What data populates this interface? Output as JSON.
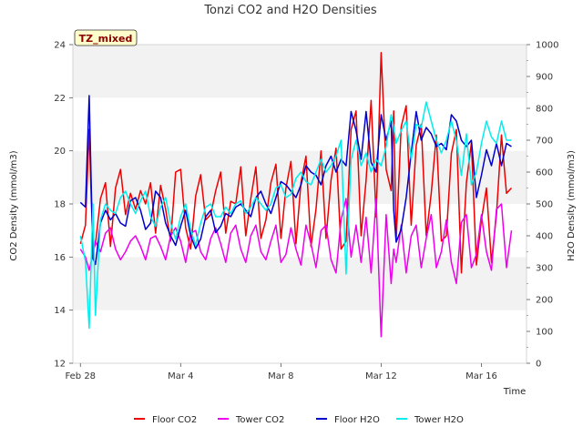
{
  "chart_data": {
    "type": "line",
    "title": "Tonzi CO2 and H2O Densities",
    "badge": "TZ_mixed",
    "xlabel": "Time",
    "ylabel_left": "CO2 Density (mmol/m3)",
    "ylabel_right": "H2O Density (mmol/m3)",
    "ylim_left": [
      12,
      24
    ],
    "ylim_right": [
      0,
      1000
    ],
    "xlim_days": [
      -0.3,
      17.8
    ],
    "x_ticks": [
      {
        "day": 0,
        "label": "Feb 28"
      },
      {
        "day": 4,
        "label": "Mar 4"
      },
      {
        "day": 8,
        "label": "Mar 8"
      },
      {
        "day": 12,
        "label": "Mar 12"
      },
      {
        "day": 16,
        "label": "Mar 16"
      }
    ],
    "y_ticks_left": [
      "12",
      "14",
      "16",
      "18",
      "20",
      "22",
      "24"
    ],
    "y_ticks_right": [
      "0",
      "100",
      "200",
      "300",
      "400",
      "500",
      "600",
      "700",
      "800",
      "900",
      "1000"
    ],
    "grid": "horizontal bands",
    "legend_position": "bottom",
    "series": [
      {
        "name": "Floor CO2",
        "axis": "left",
        "color": "#ee0000",
        "x": [
          0.0,
          0.2,
          0.35,
          0.5,
          0.6,
          0.8,
          1.0,
          1.2,
          1.4,
          1.6,
          1.8,
          2.0,
          2.2,
          2.4,
          2.6,
          2.8,
          3.0,
          3.2,
          3.4,
          3.6,
          3.8,
          4.0,
          4.2,
          4.4,
          4.6,
          4.8,
          5.0,
          5.2,
          5.4,
          5.6,
          5.8,
          6.0,
          6.2,
          6.4,
          6.6,
          6.8,
          7.0,
          7.2,
          7.4,
          7.6,
          7.8,
          8.0,
          8.2,
          8.4,
          8.6,
          8.8,
          9.0,
          9.2,
          9.4,
          9.6,
          9.8,
          10.0,
          10.2,
          10.4,
          10.6,
          10.8,
          11.0,
          11.2,
          11.4,
          11.6,
          11.8,
          12.0,
          12.2,
          12.4,
          12.5,
          12.6,
          12.8,
          13.0,
          13.2,
          13.4,
          13.6,
          13.8,
          14.0,
          14.2,
          14.4,
          14.6,
          14.8,
          15.0,
          15.2,
          15.4,
          15.6,
          15.8,
          16.0,
          16.2,
          16.4,
          16.6,
          16.8,
          17.0,
          17.2
        ],
        "y": [
          16.5,
          17.2,
          20.8,
          16.2,
          16.5,
          18.2,
          18.8,
          16.4,
          18.6,
          19.3,
          17.6,
          18.4,
          17.8,
          18.5,
          18.0,
          18.8,
          16.9,
          18.7,
          17.8,
          16.6,
          19.2,
          19.3,
          17.1,
          16.3,
          18.3,
          19.1,
          17.4,
          17.6,
          18.5,
          19.2,
          16.9,
          18.1,
          18.0,
          19.4,
          16.8,
          18.2,
          19.4,
          16.7,
          17.4,
          18.8,
          19.5,
          16.7,
          18.6,
          19.6,
          16.5,
          18.8,
          19.8,
          16.4,
          17.8,
          20.0,
          16.7,
          18.9,
          20.1,
          16.3,
          16.6,
          20.8,
          21.5,
          16.8,
          18.9,
          21.9,
          17.5,
          23.7,
          19.3,
          18.5,
          21.5,
          16.6,
          20.9,
          21.7,
          17.2,
          20.2,
          21.0,
          16.8,
          18.4,
          20.6,
          16.6,
          16.8,
          19.9,
          20.8,
          15.4,
          18.8,
          20.3,
          15.7,
          17.4,
          18.6,
          15.8,
          17.6,
          20.6,
          18.4,
          18.6
        ]
      },
      {
        "name": "Tower CO2",
        "axis": "left",
        "color": "#ee00ee",
        "x": [
          0.0,
          0.2,
          0.35,
          0.5,
          0.6,
          0.8,
          1.0,
          1.2,
          1.4,
          1.6,
          1.8,
          2.0,
          2.2,
          2.4,
          2.6,
          2.8,
          3.0,
          3.2,
          3.4,
          3.6,
          3.8,
          4.0,
          4.2,
          4.4,
          4.6,
          4.8,
          5.0,
          5.2,
          5.4,
          5.6,
          5.8,
          6.0,
          6.2,
          6.4,
          6.6,
          6.8,
          7.0,
          7.2,
          7.4,
          7.6,
          7.8,
          8.0,
          8.2,
          8.4,
          8.6,
          8.8,
          9.0,
          9.2,
          9.4,
          9.6,
          9.8,
          10.0,
          10.2,
          10.4,
          10.6,
          10.8,
          11.0,
          11.2,
          11.4,
          11.6,
          11.8,
          12.0,
          12.2,
          12.4,
          12.5,
          12.6,
          12.8,
          13.0,
          13.2,
          13.4,
          13.6,
          13.8,
          14.0,
          14.2,
          14.4,
          14.6,
          14.8,
          15.0,
          15.2,
          15.4,
          15.6,
          15.8,
          16.0,
          16.2,
          16.4,
          16.6,
          16.8,
          17.0,
          17.2
        ],
        "y": [
          16.3,
          16.0,
          15.5,
          16.1,
          16.6,
          16.2,
          16.9,
          17.1,
          16.3,
          15.9,
          16.2,
          16.6,
          16.8,
          16.4,
          15.9,
          16.7,
          16.8,
          16.4,
          15.9,
          16.8,
          17.1,
          16.6,
          15.8,
          16.9,
          17.0,
          16.2,
          15.9,
          16.7,
          17.1,
          16.5,
          15.8,
          16.9,
          17.2,
          16.3,
          15.8,
          16.8,
          17.2,
          16.2,
          15.9,
          16.6,
          17.2,
          15.8,
          16.1,
          17.1,
          16.3,
          15.7,
          17.2,
          16.5,
          15.6,
          17.0,
          17.2,
          15.9,
          15.4,
          17.4,
          18.2,
          16.0,
          17.2,
          15.8,
          17.5,
          15.4,
          18.2,
          13.0,
          17.6,
          15.0,
          16.3,
          15.8,
          17.2,
          15.4,
          16.8,
          17.2,
          15.6,
          16.7,
          17.6,
          15.6,
          16.2,
          17.4,
          15.8,
          15.0,
          17.3,
          17.6,
          15.6,
          16.1,
          17.6,
          16.2,
          15.5,
          17.8,
          18.0,
          15.6,
          17.0
        ]
      },
      {
        "name": "Floor H2O",
        "axis": "right",
        "color": "#0000cc",
        "x": [
          0.0,
          0.2,
          0.35,
          0.5,
          0.6,
          0.8,
          1.0,
          1.2,
          1.4,
          1.6,
          1.8,
          2.0,
          2.2,
          2.4,
          2.6,
          2.8,
          3.0,
          3.2,
          3.4,
          3.6,
          3.8,
          4.0,
          4.2,
          4.4,
          4.6,
          4.8,
          5.0,
          5.2,
          5.4,
          5.6,
          5.8,
          6.0,
          6.2,
          6.4,
          6.6,
          6.8,
          7.0,
          7.2,
          7.4,
          7.6,
          7.8,
          8.0,
          8.2,
          8.4,
          8.6,
          8.8,
          9.0,
          9.2,
          9.4,
          9.6,
          9.8,
          10.0,
          10.2,
          10.4,
          10.6,
          10.8,
          11.0,
          11.2,
          11.4,
          11.6,
          11.8,
          12.0,
          12.2,
          12.4,
          12.5,
          12.6,
          12.8,
          13.0,
          13.2,
          13.4,
          13.6,
          13.8,
          14.0,
          14.2,
          14.4,
          14.6,
          14.8,
          15.0,
          15.2,
          15.4,
          15.6,
          15.8,
          16.0,
          16.2,
          16.4,
          16.6,
          16.8,
          17.0,
          17.2
        ],
        "y": [
          505,
          490,
          840,
          330,
          310,
          440,
          480,
          450,
          470,
          440,
          430,
          510,
          520,
          480,
          420,
          440,
          540,
          520,
          440,
          400,
          370,
          430,
          480,
          400,
          360,
          390,
          460,
          480,
          410,
          430,
          470,
          460,
          490,
          500,
          480,
          460,
          520,
          540,
          500,
          470,
          520,
          570,
          560,
          540,
          520,
          560,
          620,
          600,
          590,
          560,
          620,
          650,
          600,
          640,
          620,
          790,
          730,
          640,
          790,
          630,
          600,
          780,
          700,
          760,
          480,
          380,
          420,
          520,
          660,
          790,
          700,
          740,
          720,
          680,
          690,
          670,
          780,
          760,
          700,
          680,
          700,
          520,
          590,
          670,
          620,
          690,
          620,
          690,
          680
        ]
      },
      {
        "name": "Tower H2O",
        "axis": "right",
        "color": "#00eeee",
        "x": [
          0.0,
          0.2,
          0.35,
          0.5,
          0.6,
          0.8,
          1.0,
          1.2,
          1.4,
          1.6,
          1.8,
          2.0,
          2.2,
          2.4,
          2.6,
          2.8,
          3.0,
          3.2,
          3.4,
          3.6,
          3.8,
          4.0,
          4.2,
          4.4,
          4.6,
          4.8,
          5.0,
          5.2,
          5.4,
          5.6,
          5.8,
          6.0,
          6.2,
          6.4,
          6.6,
          6.8,
          7.0,
          7.2,
          7.4,
          7.6,
          7.8,
          8.0,
          8.2,
          8.4,
          8.6,
          8.8,
          9.0,
          9.2,
          9.4,
          9.6,
          9.8,
          10.0,
          10.2,
          10.4,
          10.6,
          10.8,
          11.0,
          11.2,
          11.4,
          11.6,
          11.8,
          12.0,
          12.2,
          12.4,
          12.5,
          12.6,
          12.8,
          13.0,
          13.2,
          13.4,
          13.6,
          13.8,
          14.0,
          14.2,
          14.4,
          14.6,
          14.8,
          15.0,
          15.2,
          15.4,
          15.6,
          15.8,
          16.0,
          16.2,
          16.4,
          16.6,
          16.8,
          17.0,
          17.2
        ],
        "y": [
          400,
          320,
          110,
          500,
          150,
          450,
          500,
          480,
          470,
          520,
          540,
          500,
          470,
          510,
          540,
          460,
          430,
          490,
          520,
          440,
          390,
          460,
          500,
          420,
          370,
          440,
          490,
          500,
          460,
          460,
          490,
          470,
          500,
          510,
          470,
          490,
          520,
          500,
          480,
          500,
          550,
          560,
          520,
          530,
          580,
          600,
          570,
          560,
          600,
          640,
          600,
          620,
          650,
          700,
          280,
          640,
          700,
          620,
          660,
          600,
          640,
          620,
          680,
          780,
          740,
          690,
          730,
          760,
          640,
          750,
          740,
          820,
          760,
          700,
          660,
          700,
          760,
          700,
          590,
          720,
          560,
          600,
          690,
          760,
          710,
          690,
          760,
          700,
          700
        ]
      }
    ]
  }
}
